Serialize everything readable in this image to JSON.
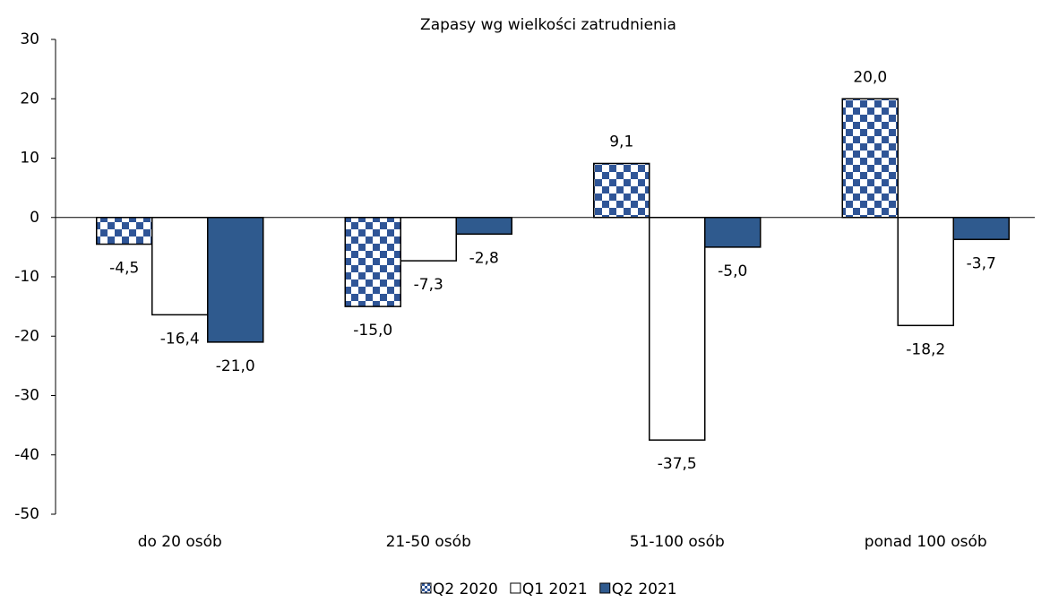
{
  "chart_data": {
    "type": "bar",
    "title": "Zapasy wg wielkości zatrudnienia",
    "categories": [
      "do 20 osób",
      "21-50 osób",
      "51-100 osób",
      "ponad 100 osób"
    ],
    "series": [
      {
        "name": "Q2 2020",
        "color": "#2f5597",
        "pattern": "checker",
        "values": [
          -4.5,
          -15.0,
          9.1,
          20.0
        ],
        "value_labels": [
          "-4,5",
          "-15,0",
          "9,1",
          "20,0"
        ]
      },
      {
        "name": "Q1 2021",
        "color": "#ffffff",
        "values": [
          -16.4,
          -7.3,
          -37.5,
          -18.2
        ],
        "value_labels": [
          "-16,4",
          "-7,3",
          "-37,5",
          "-18,2"
        ]
      },
      {
        "name": "Q2 2021",
        "color": "#2f5a8e",
        "values": [
          -21.0,
          -2.8,
          -5.0,
          -3.7
        ],
        "value_labels": [
          "-21,0",
          "-2,8",
          "-5,0",
          "-3,7"
        ]
      }
    ],
    "ylim": [
      -50,
      30
    ],
    "yticks": [
      -50,
      -40,
      -30,
      -20,
      -10,
      0,
      10,
      20,
      30
    ],
    "grid": false,
    "legend": "bottom"
  }
}
